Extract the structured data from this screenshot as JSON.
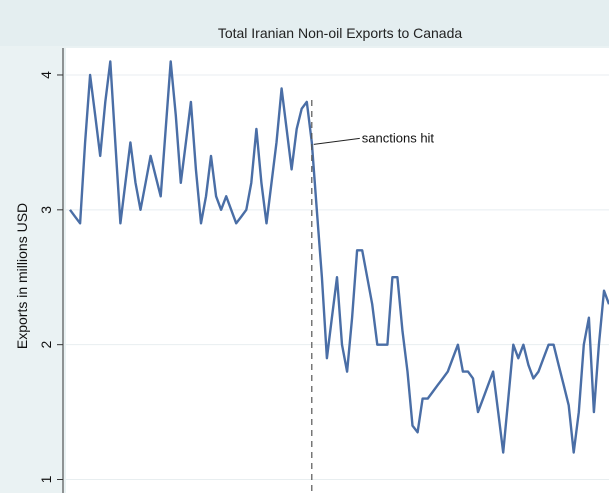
{
  "chart_data": {
    "type": "line",
    "title": "Total Iranian Non-oil Exports to Canada",
    "xlabel": "",
    "ylabel": "Exports in millions USD",
    "yticks": [
      "1",
      "2",
      "3",
      "4"
    ],
    "ylim": [
      0.9,
      4.2
    ],
    "grid": true,
    "legend": "none",
    "annotation": {
      "text": "sanctions hit",
      "x": 48
    },
    "series": [
      {
        "color": "#4a6ea6",
        "x": [
          0,
          1,
          2,
          3,
          4,
          5,
          6,
          7,
          8,
          9,
          10,
          11,
          12,
          13,
          14,
          15,
          16,
          17,
          18,
          19,
          20,
          21,
          22,
          23,
          24,
          25,
          26,
          27,
          28,
          29,
          30,
          31,
          32,
          33,
          34,
          35,
          36,
          37,
          38,
          39,
          40,
          41,
          42,
          43,
          44,
          45,
          46,
          47,
          48,
          49,
          50,
          51,
          52,
          53,
          54,
          55,
          56,
          57,
          58,
          59,
          60,
          61,
          62,
          63,
          64,
          65,
          66,
          67,
          68,
          69,
          70,
          71,
          72,
          73,
          74,
          75,
          76,
          77,
          78,
          79,
          80,
          81,
          82,
          83,
          84,
          85,
          86,
          87,
          88,
          89,
          90,
          91,
          92,
          93,
          94,
          95,
          96,
          97,
          98,
          99,
          100,
          101,
          102,
          103,
          104,
          105,
          106,
          107
        ],
        "values": [
          3.0,
          2.95,
          2.9,
          3.5,
          4.0,
          3.7,
          3.4,
          3.8,
          4.1,
          3.5,
          2.9,
          3.2,
          3.5,
          3.2,
          3.0,
          3.2,
          3.4,
          3.25,
          3.1,
          3.6,
          4.1,
          3.7,
          3.2,
          3.5,
          3.8,
          3.3,
          2.9,
          3.1,
          3.4,
          3.1,
          3.0,
          3.1,
          3.0,
          2.9,
          2.95,
          3.0,
          3.2,
          3.6,
          3.2,
          2.9,
          3.2,
          3.5,
          3.9,
          3.6,
          3.3,
          3.6,
          3.75,
          3.8,
          3.5,
          3.0,
          2.5,
          1.9,
          2.2,
          2.5,
          2.0,
          1.8,
          2.2,
          2.7,
          2.7,
          2.5,
          2.3,
          2.0,
          2.0,
          2.0,
          2.5,
          2.5,
          2.1,
          1.8,
          1.4,
          1.35,
          1.6,
          1.6,
          1.65,
          1.7,
          1.75,
          1.8,
          1.9,
          2.0,
          1.8,
          1.8,
          1.75,
          1.5,
          1.6,
          1.7,
          1.8,
          1.5,
          1.2,
          1.6,
          2.0,
          1.9,
          2.0,
          1.85,
          1.75,
          1.8,
          1.9,
          2.0,
          2.0,
          1.85,
          1.7,
          1.55,
          1.2,
          1.5,
          2.0,
          2.2,
          1.5,
          2.0,
          2.4,
          2.3
        ]
      }
    ]
  }
}
